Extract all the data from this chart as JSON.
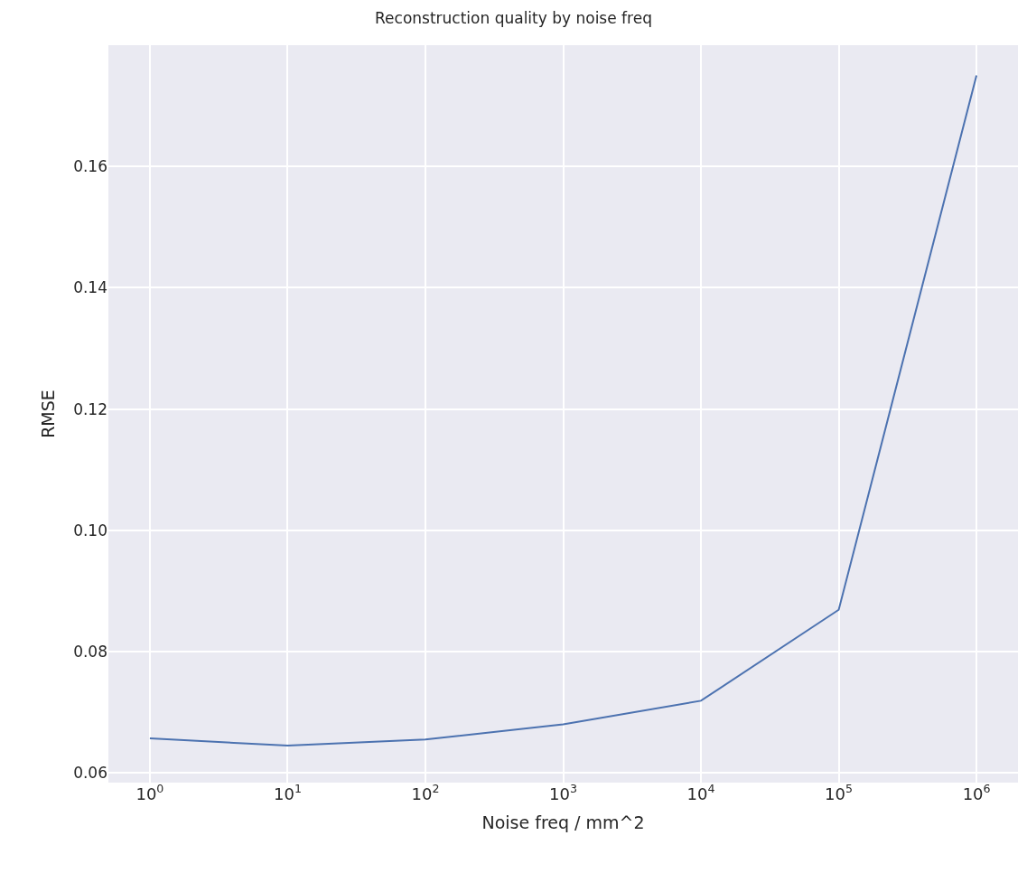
{
  "chart_data": {
    "type": "line",
    "title": "Reconstruction quality by noise freq",
    "xlabel": "Noise freq / mm^2",
    "ylabel": "RMSE",
    "x": [
      1,
      10,
      100,
      1000,
      10000,
      100000,
      1000000
    ],
    "series": [
      {
        "color": "#4c72b0",
        "values": [
          0.0657,
          0.0645,
          0.0655,
          0.068,
          0.0719,
          0.0869,
          0.175
        ]
      }
    ],
    "log": "x",
    "xlim": [
      0.5,
      2000000
    ],
    "ylim": [
      0.0584,
      0.18
    ],
    "xticks": [
      {
        "value": 1,
        "label": "10$^{0}$"
      },
      {
        "value": 10,
        "label": "10$^{1}$"
      },
      {
        "value": 100,
        "label": "10$^{2}$"
      },
      {
        "value": 1000,
        "label": "10$^{3}$"
      },
      {
        "value": 10000,
        "label": "10$^{4}$"
      },
      {
        "value": 100000,
        "label": "10$^{5}$"
      },
      {
        "value": 1000000,
        "label": "10$^{6}$"
      }
    ],
    "yticks": [
      {
        "value": 0.06,
        "label": "0.06"
      },
      {
        "value": 0.08,
        "label": "0.08"
      },
      {
        "value": 0.1,
        "label": "0.10"
      },
      {
        "value": 0.12,
        "label": "0.12"
      },
      {
        "value": 0.14,
        "label": "0.14"
      },
      {
        "value": 0.16,
        "label": "0.16"
      }
    ],
    "grid": true,
    "marker": "none",
    "line_style": "solid"
  }
}
